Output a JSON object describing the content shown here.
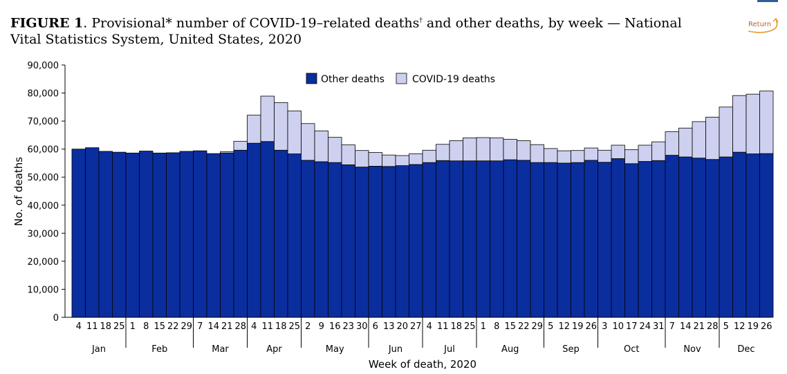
{
  "title": {
    "label": "FIGURE 1",
    "text_a": ". Provisional",
    "asterisk": "*",
    "text_b": " number of COVID-19–related deaths",
    "dagger": "†",
    "text_c": " and other deaths, by week — National Vital Statistics System, United States, 2020"
  },
  "return_label": "Return",
  "chart_data": {
    "type": "bar",
    "stacked": true,
    "xlabel": "Week of death, 2020",
    "ylabel": "No. of deaths",
    "ylim": [
      0,
      90000
    ],
    "yticks": [
      0,
      10000,
      20000,
      30000,
      40000,
      50000,
      60000,
      70000,
      80000,
      90000
    ],
    "ytick_labels": [
      "0",
      "10,000",
      "20,000",
      "30,000",
      "40,000",
      "50,000",
      "60,000",
      "70,000",
      "80,000",
      "90,000"
    ],
    "legend_position": "top-center",
    "colors": {
      "other": "#0b2e9e",
      "covid": "#cdd0ee",
      "edge": "#000000"
    },
    "categories": [
      "4",
      "11",
      "18",
      "25",
      "1",
      "8",
      "15",
      "22",
      "29",
      "7",
      "14",
      "21",
      "28",
      "4",
      "11",
      "18",
      "25",
      "2",
      "9",
      "16",
      "23",
      "30",
      "6",
      "13",
      "20",
      "27",
      "4",
      "11",
      "18",
      "25",
      "1",
      "8",
      "15",
      "22",
      "29",
      "5",
      "12",
      "19",
      "26",
      "3",
      "10",
      "17",
      "24",
      "31",
      "7",
      "14",
      "21",
      "28",
      "5",
      "12",
      "19",
      "26"
    ],
    "months": [
      {
        "label": "Jan",
        "start": 0,
        "end": 4
      },
      {
        "label": "Feb",
        "start": 4,
        "end": 9
      },
      {
        "label": "Mar",
        "start": 9,
        "end": 13
      },
      {
        "label": "Apr",
        "start": 13,
        "end": 17
      },
      {
        "label": "May",
        "start": 17,
        "end": 22
      },
      {
        "label": "Jun",
        "start": 22,
        "end": 26
      },
      {
        "label": "Jul",
        "start": 26,
        "end": 30
      },
      {
        "label": "Aug",
        "start": 30,
        "end": 35
      },
      {
        "label": "Sep",
        "start": 35,
        "end": 39
      },
      {
        "label": "Oct",
        "start": 39,
        "end": 44
      },
      {
        "label": "Nov",
        "start": 44,
        "end": 48
      },
      {
        "label": "Dec",
        "start": 48,
        "end": 52
      }
    ],
    "series": [
      {
        "name": "Other deaths",
        "values": [
          60000,
          60500,
          59200,
          58900,
          58600,
          59300,
          58600,
          58700,
          59200,
          59400,
          58400,
          58600,
          59600,
          62100,
          62700,
          59600,
          58300,
          56000,
          55500,
          55200,
          54400,
          53600,
          53900,
          53800,
          54100,
          54500,
          55200,
          55900,
          55800,
          55800,
          55800,
          55800,
          56200,
          56000,
          55200,
          55200,
          55000,
          55200,
          56000,
          55300,
          56600,
          54800,
          55600,
          55900,
          57800,
          57200,
          56800,
          56300,
          57200,
          58900,
          58300,
          58400
        ]
      },
      {
        "name": "COVID-19 deaths",
        "values": [
          0,
          0,
          0,
          0,
          0,
          0,
          0,
          0,
          0,
          0,
          0,
          500,
          3200,
          10000,
          16200,
          17000,
          15300,
          13100,
          11000,
          9000,
          7100,
          5900,
          4900,
          4100,
          3600,
          3800,
          4400,
          5800,
          7200,
          8200,
          8300,
          8200,
          7300,
          7000,
          6400,
          5000,
          4400,
          4300,
          4400,
          4300,
          4800,
          5000,
          5800,
          6700,
          8400,
          10300,
          13000,
          15100,
          17800,
          20200,
          21300,
          22300
        ]
      }
    ]
  }
}
